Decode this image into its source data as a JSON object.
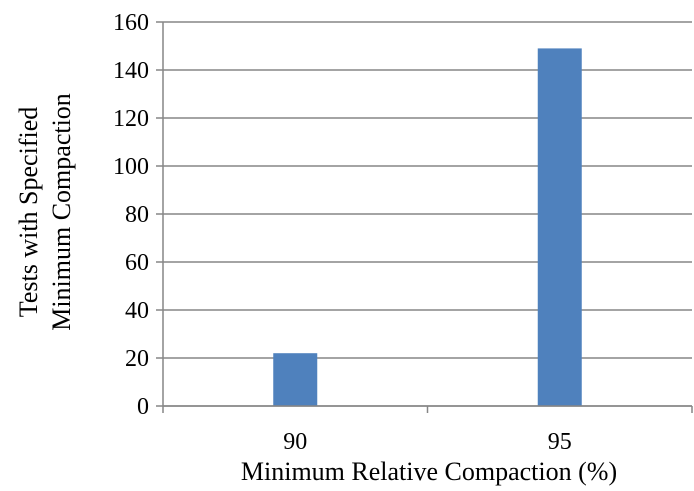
{
  "chart_data": {
    "type": "bar",
    "categories": [
      "90",
      "95"
    ],
    "values": [
      22,
      149
    ],
    "xlabel": "Minimum Relative Compaction (%)",
    "ylabel_lines": [
      "Tests with Specified",
      "Minimum Compaction"
    ],
    "ylim": [
      0,
      160
    ],
    "yticks": [
      "0",
      "20",
      "40",
      "60",
      "80",
      "100",
      "120",
      "140",
      "160"
    ],
    "grid": true,
    "legend": "none",
    "bar_color": "#4f81bd"
  }
}
